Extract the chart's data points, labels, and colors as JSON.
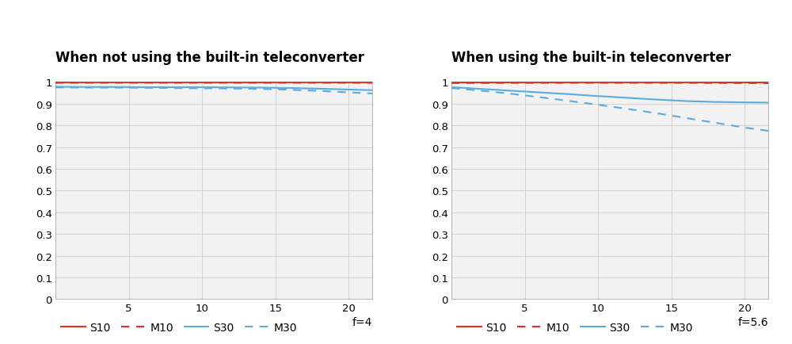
{
  "title_left": "When not using the built-in teleconverter",
  "title_right": "When using the built-in teleconverter",
  "f_label_left": "f=4",
  "f_label_right": "f=5.6",
  "x_max": 21.6,
  "x_ticks": [
    5,
    10,
    15,
    20
  ],
  "y_ticks": [
    0,
    0.1,
    0.2,
    0.3,
    0.4,
    0.5,
    0.6,
    0.7,
    0.8,
    0.9,
    1.0
  ],
  "ytick_labels": [
    "0",
    "0.1",
    "0.2",
    "0.3",
    "0.4",
    "0.5",
    "0.6",
    "0.7",
    "0.8",
    "0.9",
    "1"
  ],
  "colors": {
    "red": "#e03020",
    "blue": "#5aabdf"
  },
  "chart1": {
    "S10": {
      "x": [
        0,
        2,
        4,
        6,
        8,
        10,
        12,
        14,
        16,
        18,
        20,
        21.6
      ],
      "y": [
        0.998,
        0.9982,
        0.9983,
        0.9983,
        0.9983,
        0.9983,
        0.9983,
        0.9983,
        0.9983,
        0.9983,
        0.9982,
        0.9982
      ]
    },
    "M10": {
      "x": [
        0,
        2,
        4,
        6,
        8,
        10,
        12,
        14,
        16,
        18,
        20,
        21.6
      ],
      "y": [
        0.996,
        0.9962,
        0.9963,
        0.9963,
        0.9963,
        0.9963,
        0.9963,
        0.9963,
        0.9963,
        0.9963,
        0.9962,
        0.996
      ]
    },
    "S30": {
      "x": [
        0,
        2,
        4,
        6,
        8,
        10,
        12,
        14,
        16,
        18,
        20,
        21.6
      ],
      "y": [
        0.978,
        0.977,
        0.977,
        0.976,
        0.976,
        0.976,
        0.975,
        0.974,
        0.972,
        0.969,
        0.965,
        0.962
      ]
    },
    "M30": {
      "x": [
        0,
        2,
        4,
        6,
        8,
        10,
        12,
        14,
        16,
        18,
        20,
        21.6
      ],
      "y": [
        0.975,
        0.974,
        0.974,
        0.973,
        0.972,
        0.971,
        0.97,
        0.968,
        0.964,
        0.959,
        0.952,
        0.947
      ]
    }
  },
  "chart2": {
    "S10": {
      "x": [
        0,
        2,
        4,
        6,
        8,
        10,
        12,
        14,
        16,
        18,
        20,
        21.6
      ],
      "y": [
        0.9975,
        0.9978,
        0.998,
        0.9981,
        0.9982,
        0.9983,
        0.9983,
        0.9983,
        0.9982,
        0.998,
        0.9978,
        0.9976
      ]
    },
    "M10": {
      "x": [
        0,
        2,
        4,
        6,
        8,
        10,
        12,
        14,
        16,
        18,
        20,
        21.6
      ],
      "y": [
        0.995,
        0.9953,
        0.9956,
        0.9958,
        0.996,
        0.9961,
        0.9961,
        0.996,
        0.9958,
        0.9954,
        0.995,
        0.9946
      ]
    },
    "S30": {
      "x": [
        0,
        2,
        4,
        6,
        8,
        10,
        12,
        14,
        16,
        18,
        20,
        21.6
      ],
      "y": [
        0.976,
        0.968,
        0.96,
        0.952,
        0.944,
        0.935,
        0.927,
        0.919,
        0.912,
        0.908,
        0.906,
        0.905
      ]
    },
    "M30": {
      "x": [
        0,
        2,
        4,
        6,
        8,
        10,
        12,
        14,
        16,
        18,
        20,
        21.6
      ],
      "y": [
        0.972,
        0.96,
        0.946,
        0.93,
        0.913,
        0.895,
        0.876,
        0.856,
        0.834,
        0.812,
        0.79,
        0.775
      ]
    }
  },
  "background_color": "#ffffff",
  "plot_bg_color": "#f2f2f2",
  "grid_color": "#cccccc",
  "title_fontsize": 12,
  "legend_fontsize": 10,
  "axis_fontsize": 9.5
}
